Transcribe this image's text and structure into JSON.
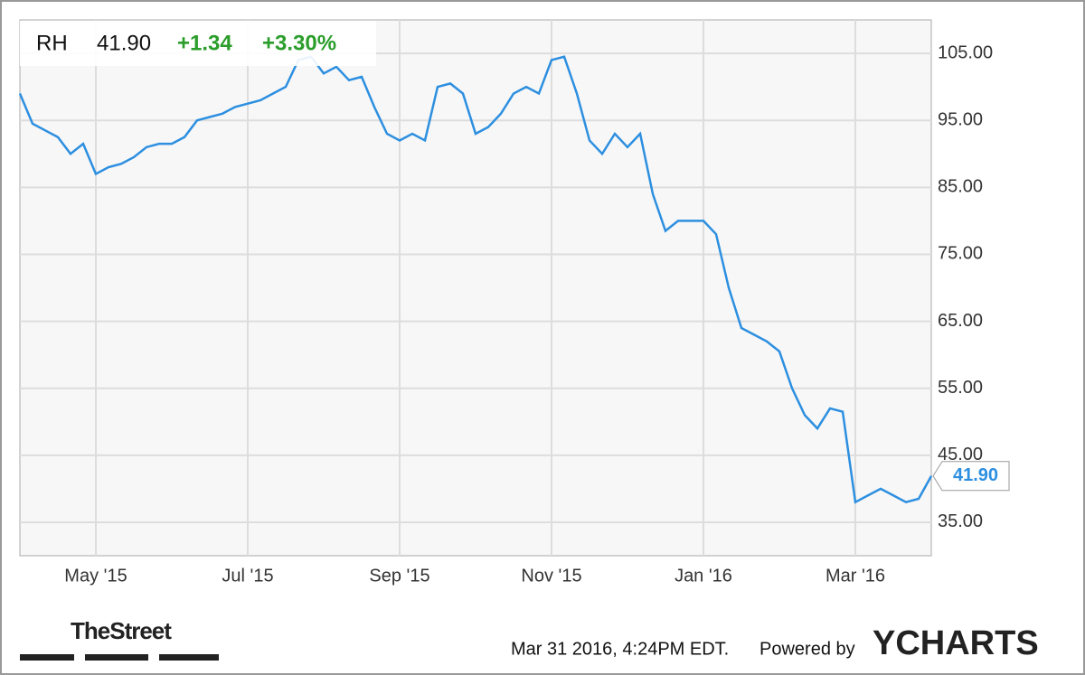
{
  "header": {
    "symbol": "RH",
    "price": "41.90",
    "change": "+1.34",
    "change_pct": "+3.30%"
  },
  "chart_data": {
    "type": "line",
    "color": "#2d8fe0",
    "last_label": "41.90",
    "categories": [
      null,
      null,
      null,
      null,
      null,
      null,
      "May '15",
      null,
      null,
      null,
      null,
      null,
      null,
      null,
      null,
      null,
      null,
      null,
      "Jul '15",
      null,
      null,
      null,
      null,
      null,
      null,
      null,
      null,
      null,
      null,
      null,
      "Sep '15",
      null,
      null,
      null,
      null,
      null,
      null,
      null,
      null,
      null,
      null,
      null,
      "Nov '15",
      null,
      null,
      null,
      null,
      null,
      null,
      null,
      null,
      null,
      null,
      null,
      "Jan '16",
      null,
      null,
      null,
      null,
      null,
      null,
      null,
      null,
      null,
      null,
      null,
      "Mar '16",
      null,
      null,
      null,
      null,
      null,
      null
    ],
    "values": [
      99,
      94.5,
      93.5,
      92.5,
      90,
      91.5,
      87,
      88,
      88.5,
      89.5,
      91,
      91.5,
      91.5,
      92.5,
      95,
      95.5,
      96,
      97,
      97.5,
      98,
      99,
      100,
      104,
      104.5,
      102,
      103,
      101,
      101.5,
      97,
      93,
      92,
      93,
      92,
      100,
      100.5,
      99,
      93,
      94,
      96,
      99,
      100,
      99,
      104,
      104.5,
      99,
      92,
      90,
      93,
      91,
      93,
      84,
      78.5,
      80,
      80,
      80,
      78,
      70,
      64,
      63,
      62,
      60.5,
      55,
      51,
      49,
      52,
      51.5,
      38,
      39,
      40,
      39,
      38,
      38.5,
      41.9
    ],
    "ylim": [
      30,
      110
    ],
    "yticks": [
      {
        "value": 35,
        "label": "35.00"
      },
      {
        "value": 45,
        "label": "45.00"
      },
      {
        "value": 55,
        "label": "55.00"
      },
      {
        "value": 65,
        "label": "65.00"
      },
      {
        "value": 75,
        "label": "75.00"
      },
      {
        "value": 85,
        "label": "85.00"
      },
      {
        "value": 95,
        "label": "95.00"
      },
      {
        "value": 105,
        "label": "105.00"
      }
    ],
    "grid": true
  },
  "footer": {
    "source": "TheStreet",
    "timestamp": "Mar 31 2016, 4:24PM EDT.",
    "powered": "Powered by",
    "brand": "YCHARTS"
  }
}
